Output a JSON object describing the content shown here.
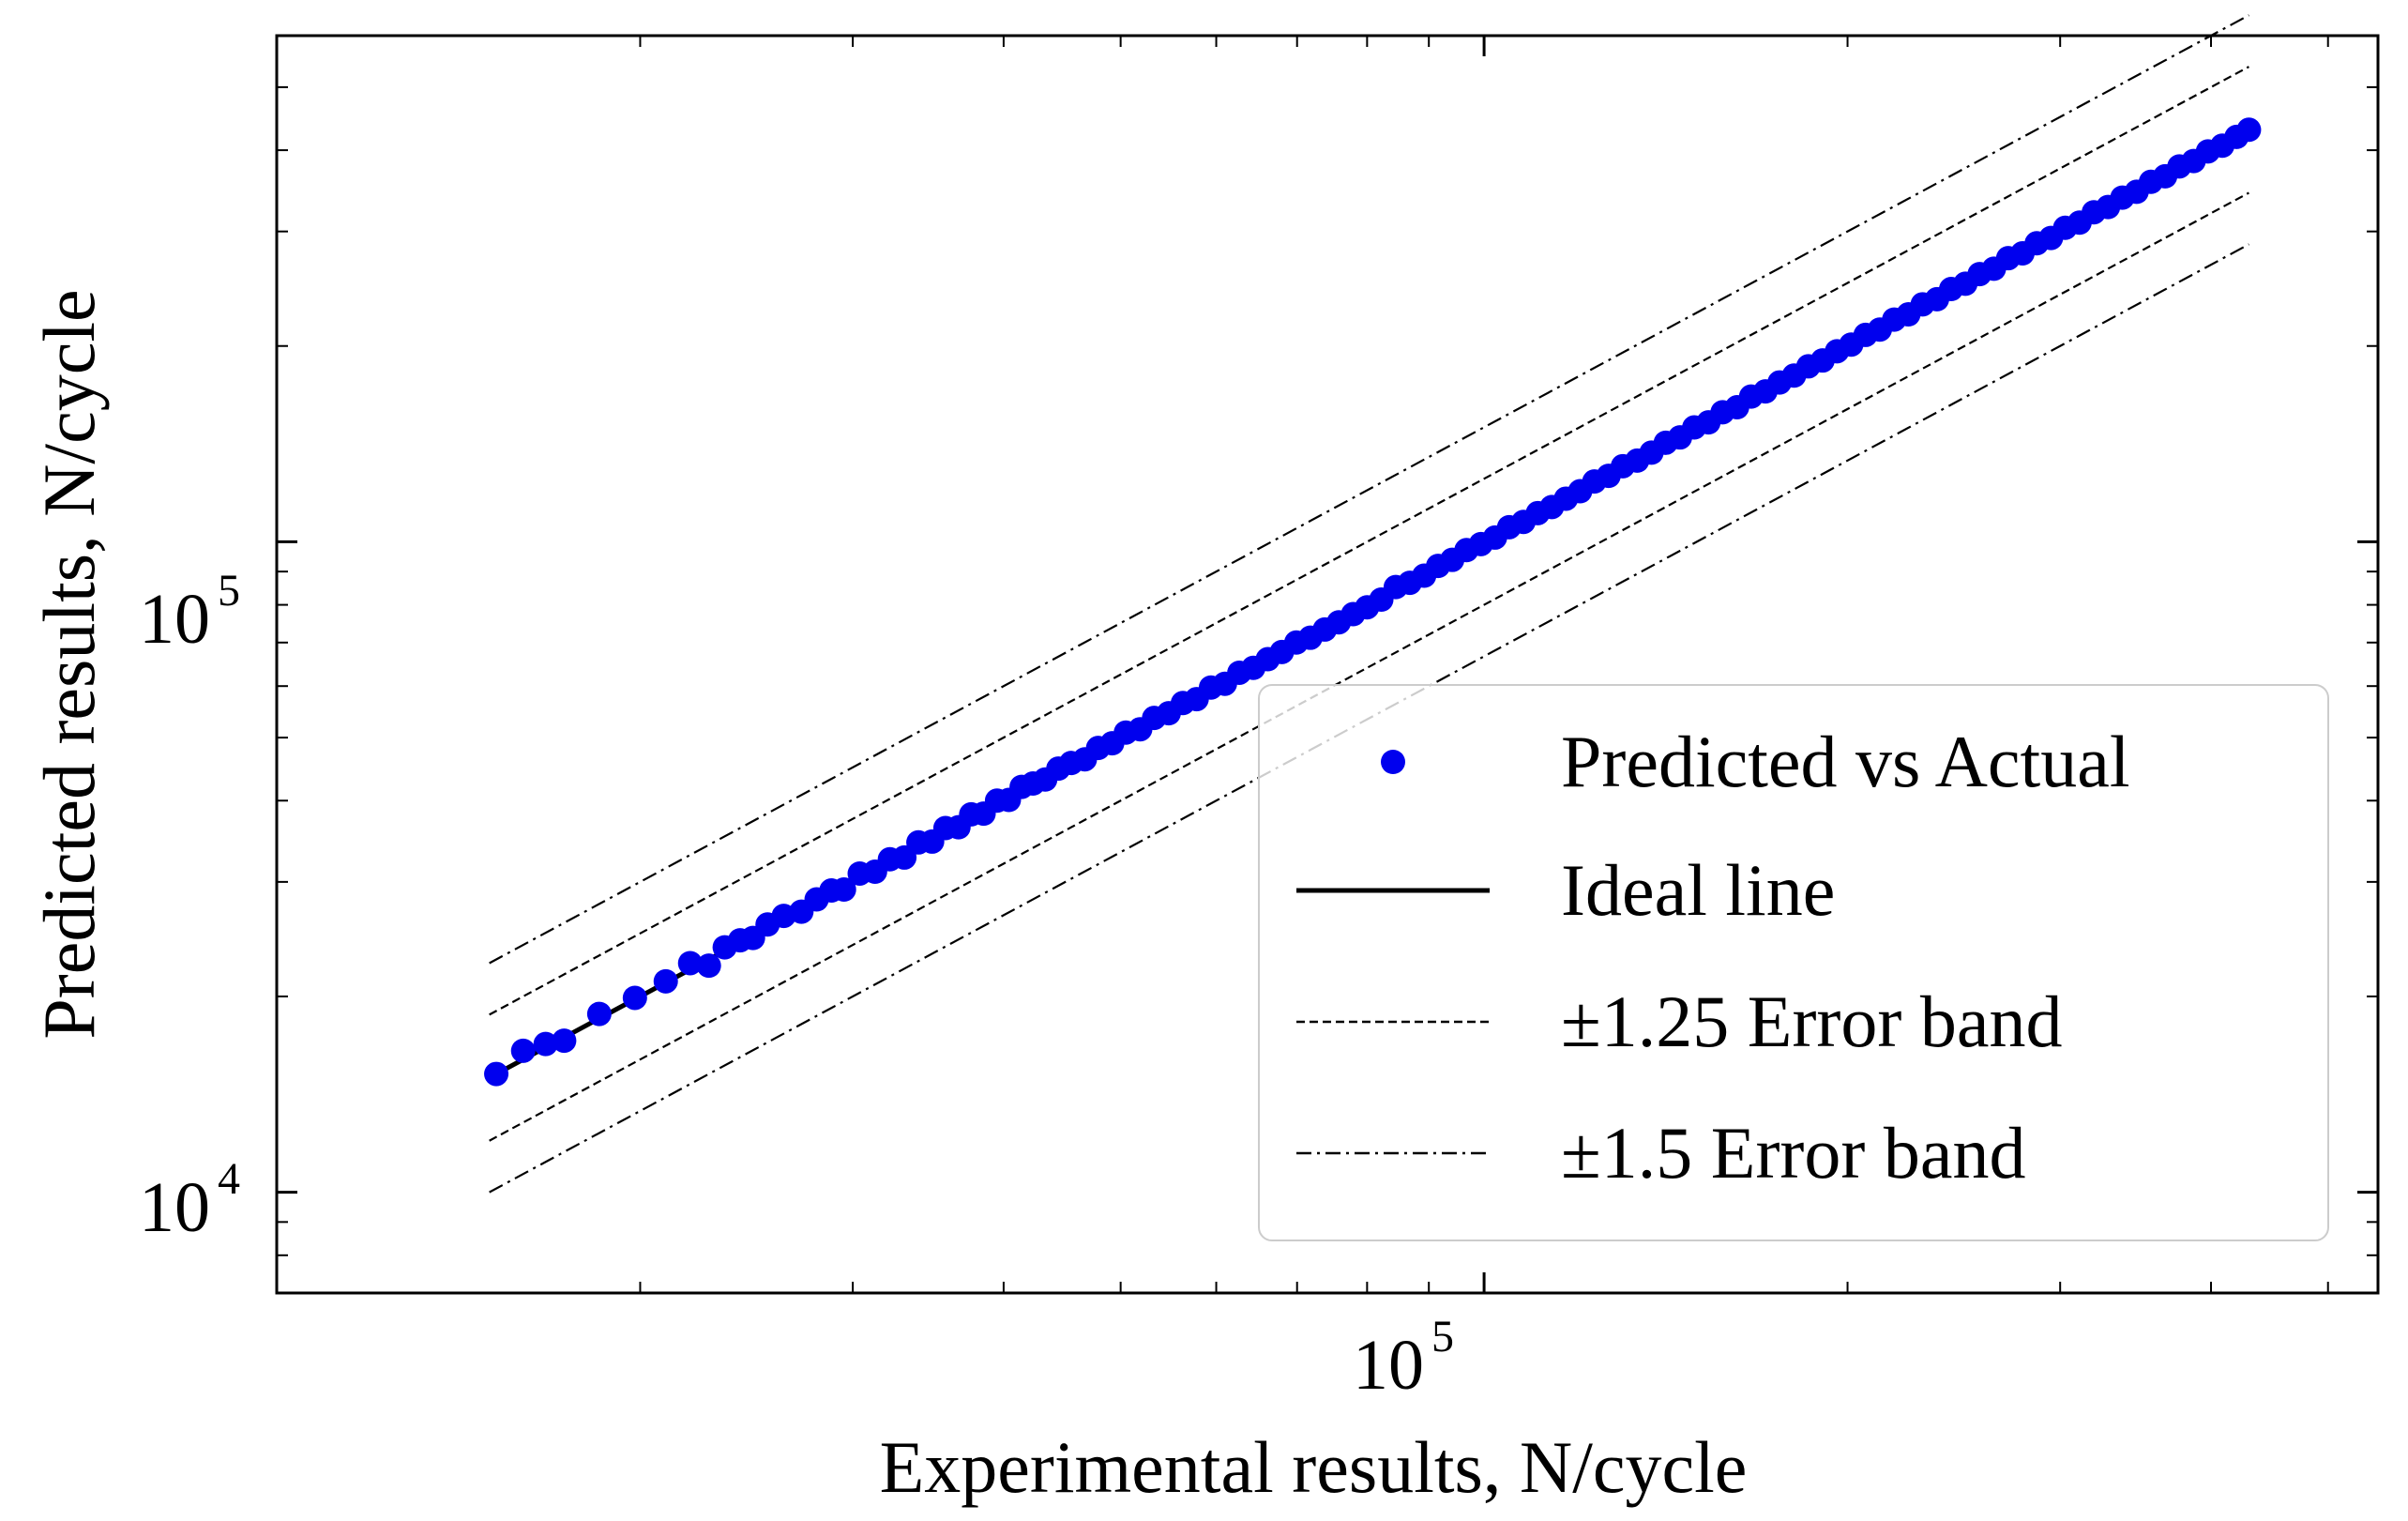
{
  "chart_data": {
    "type": "scatter",
    "xlabel": "Experimental results, N/cycle",
    "ylabel": "Predicted results, N/cycle",
    "xscale": "log",
    "yscale": "log",
    "xlim": [
      10000,
      550000
    ],
    "ylim": [
      7000,
      600000
    ],
    "x_major_ticks": [
      {
        "value": 100000,
        "base": "10",
        "exp": "5"
      }
    ],
    "y_major_ticks": [
      {
        "value": 10000,
        "base": "10",
        "exp": "4"
      },
      {
        "value": 100000,
        "base": "10",
        "exp": "5"
      }
    ],
    "grid": false,
    "legend_position": "lower right",
    "legend": [
      {
        "label": "Predicted vs Actual",
        "style": "marker"
      },
      {
        "label": "Ideal line",
        "style": "solid"
      },
      {
        "label": "±1.25 Error band",
        "style": "dashed"
      },
      {
        "label": "±1.5 Error band",
        "style": "dashdot"
      }
    ],
    "colors": {
      "points": "#0000ee",
      "lines": "#000000"
    },
    "ideal_line": {
      "x": [
        15000,
        430000
      ]
    },
    "error_bands": [
      {
        "factor": 1.25,
        "style": "dashed",
        "x": [
          15000,
          430000
        ]
      },
      {
        "factor": 1.5,
        "style": "dashdot",
        "x": [
          15000,
          430000
        ]
      }
    ],
    "series": [
      {
        "name": "Predicted vs Actual",
        "x": [
          15200,
          16000,
          16700,
          17300,
          18500,
          19800,
          21000,
          22000,
          22800,
          23500,
          24200,
          24800,
          25500,
          26300,
          27200,
          28000,
          28800,
          29500,
          30400,
          31300,
          32200,
          33100,
          34000,
          34900,
          35800,
          36700,
          37600,
          38500,
          39500,
          40400,
          41400,
          42300,
          43300,
          44400,
          45500,
          46700,
          47900,
          49200,
          50500,
          51900,
          53300,
          54800,
          56300,
          57800,
          59400,
          61000,
          62700,
          64400,
          66200,
          68000,
          69900,
          71800,
          73800,
          75800,
          77900,
          80000,
          82200,
          84500,
          86800,
          89200,
          91600,
          94100,
          96700,
          99400,
          102100,
          104900,
          107800,
          110800,
          113800,
          116900,
          120100,
          123400,
          126800,
          130300,
          133900,
          137600,
          141400,
          145300,
          149300,
          153400,
          157600,
          162000,
          166400,
          171000,
          175700,
          180600,
          185600,
          190700,
          196000,
          201400,
          207000,
          212700,
          218600,
          224600,
          230800,
          237200,
          243700,
          250400,
          257300,
          264400,
          271700,
          279200,
          286900,
          294800,
          302900,
          311300,
          319900,
          328700,
          337800,
          347100,
          356700,
          366500,
          376600,
          387000,
          397700,
          408700,
          420000,
          430000
        ],
        "y": [
          15200,
          16500,
          16900,
          17100,
          18800,
          19900,
          21100,
          22500,
          22300,
          23800,
          24400,
          24600,
          25800,
          26600,
          27000,
          28200,
          29100,
          29200,
          30900,
          31100,
          32500,
          32700,
          34500,
          34600,
          36300,
          36400,
          38100,
          38200,
          40000,
          40100,
          42000,
          42500,
          43100,
          44800,
          45700,
          46300,
          48200,
          49000,
          50900,
          51500,
          53600,
          54500,
          56500,
          57300,
          59700,
          60500,
          62900,
          64000,
          66000,
          67700,
          70000,
          71200,
          73300,
          75200,
          77400,
          79300,
          81500,
          85200,
          86500,
          88700,
          91800,
          93800,
          97100,
          99200,
          101500,
          105300,
          107300,
          110700,
          113100,
          116500,
          119600,
          123800,
          126300,
          130700,
          133300,
          137100,
          142000,
          144700,
          149900,
          152600,
          158200,
          161000,
          167200,
          170300,
          175800,
          180100,
          186100,
          190000,
          196300,
          201000,
          208000,
          212000,
          219600,
          223700,
          231800,
          236000,
          244700,
          249300,
          258000,
          262900,
          272900,
          277600,
          287700,
          293200,
          303900,
          309500,
          321100,
          327100,
          338200,
          345200,
          357600,
          364700,
          377700,
          385000,
          398300,
          406400,
          419300,
          430000
        ]
      }
    ]
  }
}
